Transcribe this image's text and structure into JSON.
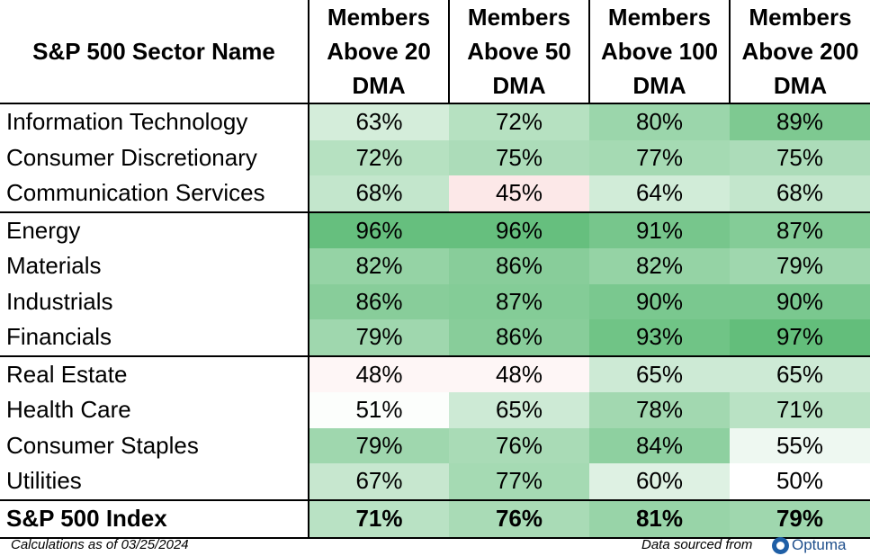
{
  "chart_data": {
    "type": "table",
    "columns": [
      "S&P 500 Sector Name",
      "Members Above 20 DMA",
      "Members Above 50 DMA",
      "Members Above 100 DMA",
      "Members Above 200 DMA"
    ],
    "groups": [
      {
        "rows": [
          {
            "name": "Information Technology",
            "values": [
              "63%",
              "72%",
              "80%",
              "89%"
            ]
          },
          {
            "name": "Consumer Discretionary",
            "values": [
              "72%",
              "75%",
              "77%",
              "75%"
            ]
          },
          {
            "name": "Communication Services",
            "values": [
              "68%",
              "45%",
              "64%",
              "68%"
            ]
          }
        ]
      },
      {
        "rows": [
          {
            "name": "Energy",
            "values": [
              "96%",
              "96%",
              "91%",
              "87%"
            ]
          },
          {
            "name": "Materials",
            "values": [
              "82%",
              "86%",
              "82%",
              "79%"
            ]
          },
          {
            "name": "Industrials",
            "values": [
              "86%",
              "87%",
              "90%",
              "90%"
            ]
          },
          {
            "name": "Financials",
            "values": [
              "79%",
              "86%",
              "93%",
              "97%"
            ]
          }
        ]
      },
      {
        "rows": [
          {
            "name": "Real Estate",
            "values": [
              "48%",
              "48%",
              "65%",
              "65%"
            ]
          },
          {
            "name": "Health Care",
            "values": [
              "51%",
              "65%",
              "78%",
              "71%"
            ]
          },
          {
            "name": "Consumer Staples",
            "values": [
              "79%",
              "76%",
              "84%",
              "55%"
            ]
          },
          {
            "name": "Utilities",
            "values": [
              "67%",
              "77%",
              "60%",
              "50%"
            ]
          }
        ]
      }
    ],
    "total": {
      "name": "S&P 500 Index",
      "values": [
        "71%",
        "76%",
        "81%",
        "79%"
      ]
    },
    "color_scale": {
      "low": "#fce8e8",
      "mid": "#ffffff",
      "high": "#63be7b"
    }
  },
  "footer": {
    "note": "Calculations as of 03/25/2024",
    "source_label": "Data sourced from",
    "logo_text": "Optuma"
  }
}
